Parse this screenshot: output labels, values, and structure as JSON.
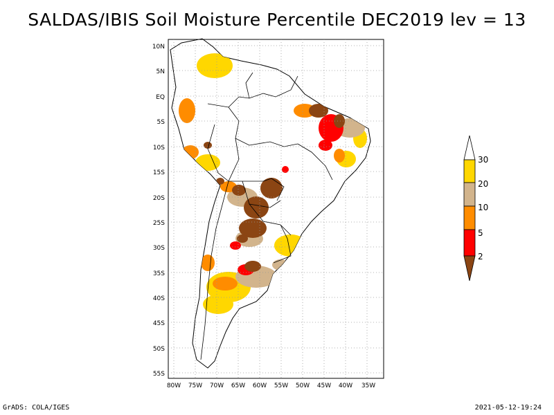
{
  "title": "SALDAS/IBIS Soil Moisture Percentile DEC2019 lev = 13",
  "footer": {
    "left": "GrADS: COLA/IGES",
    "right": "2021-05-12-19:24"
  },
  "map": {
    "region": "South America",
    "lon_range": [
      -80,
      -30
    ],
    "lat_range": [
      -55,
      12
    ],
    "grid": true,
    "lat_ticks": [
      "10N",
      "5N",
      "EQ",
      "5S",
      "10S",
      "15S",
      "20S",
      "25S",
      "30S",
      "35S",
      "40S",
      "45S",
      "50S",
      "55S"
    ],
    "lon_ticks": [
      "80W",
      "75W",
      "70W",
      "65W",
      "60W",
      "55W",
      "50W",
      "45W",
      "40W",
      "35W"
    ]
  },
  "legend": {
    "labels": [
      "2",
      "5",
      "10",
      "20",
      "30"
    ],
    "colors": {
      "below_2": "#8b4513",
      "2_5": "#ff0000",
      "5_10": "#ff8c00",
      "10_20": "#d2b48c",
      "20_30": "#ffd700",
      "above_30": "#ffffff"
    }
  }
}
